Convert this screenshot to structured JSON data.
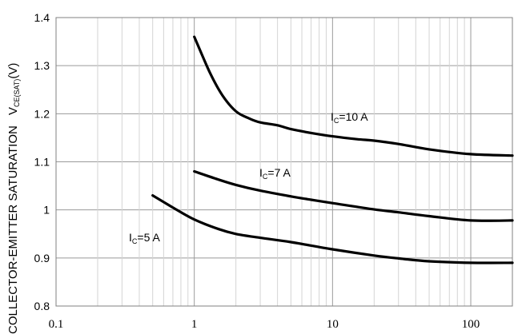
{
  "chart_data": {
    "type": "line",
    "x_scale": "log",
    "xlim": [
      0.1,
      200
    ],
    "ylim": [
      0.8,
      1.4
    ],
    "y_ticks": [
      "0.8",
      "0.9",
      "1",
      "1.1",
      "1.2",
      "1.3",
      "1.4"
    ],
    "x_ticks": [
      "0.1",
      "1",
      "10",
      "100"
    ],
    "ylabel": "COLLECTOR-EMITTER SATURATION",
    "ylabel_symbol": "V",
    "ylabel_subscript": "CE(SAT)",
    "ylabel_unit": "(V)",
    "grid": true,
    "series": [
      {
        "name": "IC=10 A",
        "annotation": {
          "main": "I",
          "sub": "C",
          "rest": "=10 A"
        },
        "x": [
          1.0,
          1.3,
          1.6,
          2.0,
          2.5,
          3.0,
          4.0,
          5.0,
          7.0,
          10,
          15,
          20,
          30,
          50,
          100,
          200
        ],
        "y": [
          1.36,
          1.285,
          1.238,
          1.205,
          1.19,
          1.182,
          1.176,
          1.168,
          1.16,
          1.153,
          1.147,
          1.144,
          1.137,
          1.126,
          1.116,
          1.113
        ]
      },
      {
        "name": "IC=7 A",
        "annotation": {
          "main": "I",
          "sub": "C",
          "rest": "=7 A"
        },
        "x": [
          1.0,
          1.5,
          2.0,
          3.0,
          5.0,
          7.0,
          10,
          20,
          30,
          50,
          100,
          200
        ],
        "y": [
          1.08,
          1.063,
          1.052,
          1.04,
          1.028,
          1.021,
          1.014,
          1.001,
          0.995,
          0.987,
          0.978,
          0.978
        ]
      },
      {
        "name": "IC=5 A",
        "annotation": {
          "main": "I",
          "sub": "C",
          "rest": "=5 A"
        },
        "x": [
          0.5,
          0.7,
          1.0,
          1.5,
          2.0,
          3.0,
          5.0,
          10,
          20,
          30,
          50,
          100,
          200
        ],
        "y": [
          1.03,
          1.005,
          0.98,
          0.96,
          0.95,
          0.942,
          0.933,
          0.918,
          0.905,
          0.899,
          0.893,
          0.89,
          0.89
        ]
      }
    ]
  }
}
